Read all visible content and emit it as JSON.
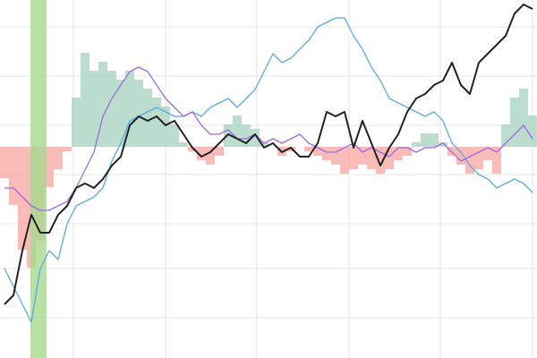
{
  "chart_data": {
    "type": "line",
    "x": [
      0,
      1,
      2,
      3,
      4,
      5,
      6,
      7,
      8,
      9,
      10,
      11,
      12,
      13,
      14,
      15,
      16,
      17,
      18,
      19,
      20,
      21,
      22,
      23,
      24,
      25,
      26,
      27,
      28,
      29,
      30,
      31,
      32,
      33,
      34,
      35,
      36,
      37,
      38,
      39,
      40,
      41,
      42,
      43,
      44,
      45,
      46,
      47,
      48,
      49,
      50,
      51,
      52,
      53,
      54,
      55,
      56,
      57,
      58,
      59
    ],
    "xlim": [
      -0.5,
      59.5
    ],
    "ylim": [
      0,
      100
    ],
    "y2lim": [
      -59,
      41
    ],
    "grid": true,
    "highlight": {
      "from": 2.9,
      "to": 4.7,
      "color": "#a8d98f"
    },
    "series": [
      {
        "type": "histogram",
        "axis": "y2",
        "color": "#a9d4c2",
        "negative_color": "#f8aaa6",
        "values": [
          -8.75,
          -16.25,
          -28.75,
          -33.75,
          -26.25,
          -11.25,
          -6.25,
          -1.25,
          13.75,
          26.25,
          21.25,
          23.75,
          21.25,
          18.75,
          21.25,
          18.75,
          16.25,
          13.75,
          11.25,
          6.25,
          1.25,
          -1.25,
          -3.75,
          -5,
          -2.5,
          6.25,
          8.75,
          6.25,
          5,
          1.25,
          0,
          -2.5,
          -1.25,
          0,
          -1.25,
          -2.5,
          -3.75,
          -5,
          -7.5,
          -6.25,
          -5,
          -6.25,
          -7.5,
          -6.25,
          -3.75,
          -2.5,
          1.25,
          3.75,
          3.75,
          1.25,
          -2.5,
          -5,
          -7.5,
          -6.25,
          -3.75,
          -7.5,
          6.25,
          13.75,
          16.25,
          8.75
        ]
      },
      {
        "type": "line",
        "color": "#5aa9e0",
        "values": [
          25,
          20,
          15,
          10,
          25,
          30,
          27.5,
          37.5,
          42.5,
          43.75,
          45,
          47.5,
          55,
          60,
          66.25,
          67.5,
          68.75,
          70,
          68.75,
          67.5,
          67.5,
          68.75,
          67.5,
          70,
          71.25,
          72.5,
          70,
          72.5,
          75,
          80,
          85,
          82.5,
          83.75,
          86.25,
          88.75,
          92.5,
          93.75,
          95,
          95,
          90,
          86.25,
          81.25,
          77.5,
          72.5,
          71.25,
          70,
          68.75,
          67.5,
          68.75,
          66.25,
          60,
          57.5,
          53.75,
          51.25,
          50,
          47.5,
          48.75,
          50,
          48.75,
          46.25
        ]
      },
      {
        "type": "line",
        "color": "#9b6be0",
        "values": [
          47.5,
          47.5,
          45,
          42.5,
          41.25,
          41.25,
          42.5,
          43.75,
          47.5,
          52.5,
          57.5,
          67.5,
          72.5,
          76.25,
          80,
          81.25,
          80,
          76.25,
          72.5,
          70,
          67.5,
          68.75,
          65,
          62.5,
          62.5,
          63.75,
          61.25,
          61.25,
          62.5,
          60,
          61.25,
          60,
          61.25,
          62.5,
          60,
          58.75,
          57.5,
          57.5,
          58.75,
          60,
          57.5,
          58.75,
          57.5,
          56.25,
          58.75,
          58.75,
          57.5,
          58.75,
          58.75,
          60,
          57.5,
          55,
          56.25,
          57.5,
          58.75,
          57.5,
          60,
          62.5,
          65,
          61.25
        ]
      },
      {
        "type": "line",
        "color": "#222222",
        "values": [
          15,
          17.5,
          30,
          40,
          35,
          35,
          40,
          42.5,
          47.5,
          48.75,
          47.5,
          50,
          53.75,
          56.25,
          65,
          67.5,
          66.25,
          67.5,
          65,
          66.25,
          62.5,
          58.75,
          56.25,
          57.5,
          60,
          62.5,
          61.25,
          60,
          62.5,
          58.75,
          60,
          57.5,
          58.75,
          56.25,
          56.25,
          60,
          68.75,
          67.5,
          68.75,
          58.75,
          66.25,
          60,
          53.75,
          58.75,
          62.5,
          68.75,
          72.5,
          73.75,
          76.25,
          77.5,
          82.5,
          76.25,
          73.75,
          82.5,
          85,
          87.5,
          90,
          96.25,
          98.75,
          97.5
        ]
      }
    ]
  }
}
